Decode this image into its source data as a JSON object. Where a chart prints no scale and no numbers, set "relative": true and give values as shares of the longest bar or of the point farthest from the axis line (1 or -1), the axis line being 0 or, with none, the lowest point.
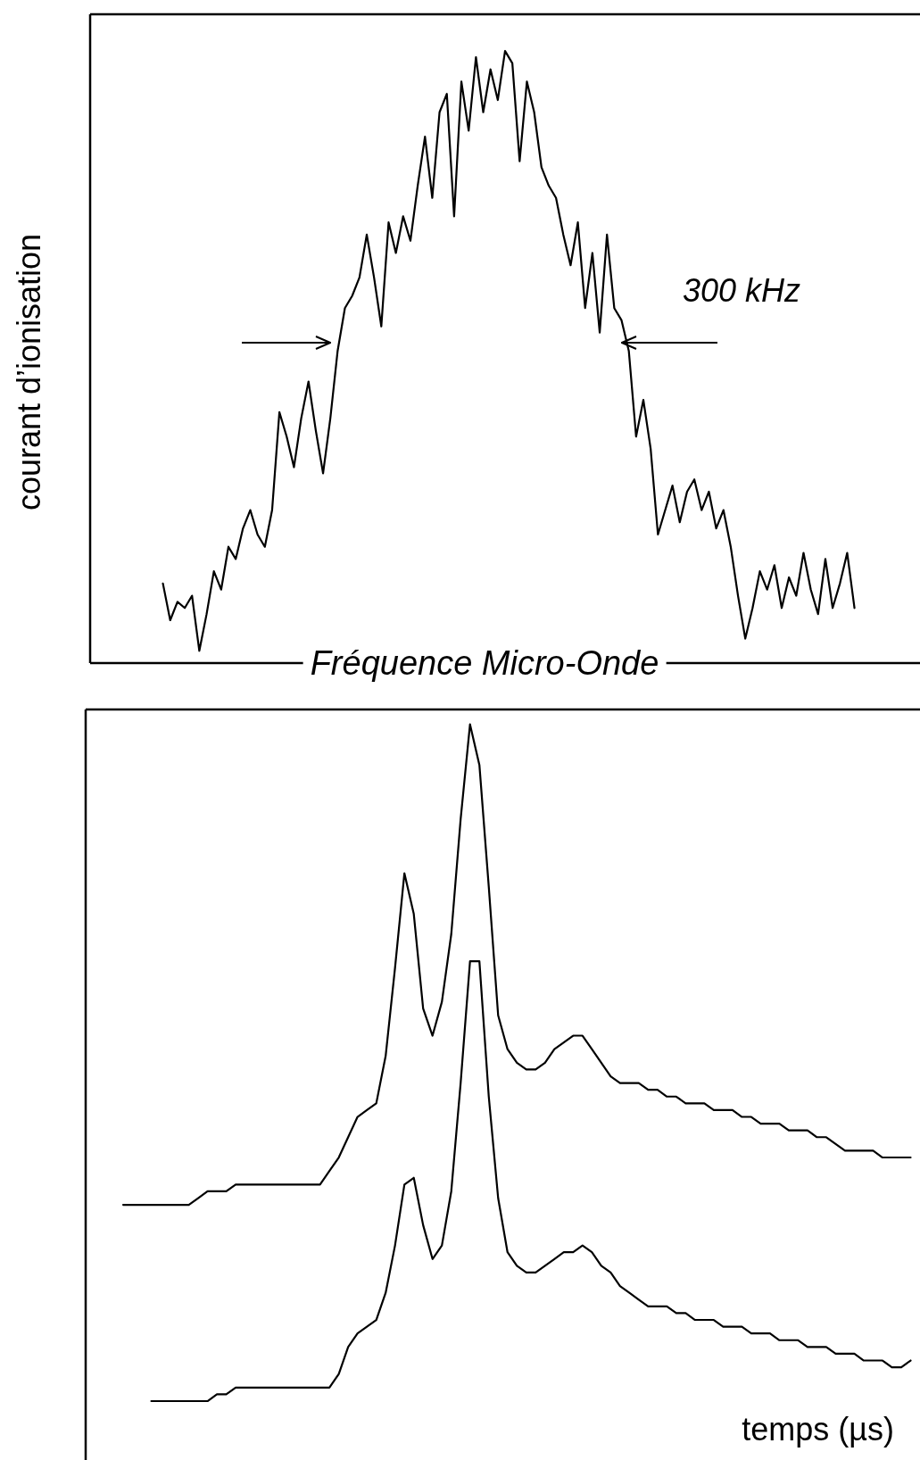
{
  "chart_data": [
    {
      "type": "line",
      "relative": true,
      "ylabel": "courant d’ionisation",
      "xlabel": "Fréquence Micro-Onde",
      "annotations": [
        "300 kHz"
      ],
      "categories": [
        null,
        null,
        null,
        null,
        null,
        null,
        null,
        null,
        null,
        null,
        null,
        null,
        null,
        null,
        null,
        null,
        null,
        null,
        null,
        null,
        null,
        null,
        null,
        null,
        null,
        null,
        null,
        null,
        null,
        null,
        null,
        null,
        null,
        null,
        null,
        null,
        null,
        null,
        null,
        null,
        null,
        null,
        null,
        null,
        null,
        null,
        null,
        null,
        null,
        null,
        null,
        null,
        null,
        null,
        null,
        null,
        null,
        null,
        null,
        null,
        null,
        null,
        null,
        null,
        null,
        null,
        null,
        null,
        null,
        null,
        null,
        null,
        null,
        null,
        null,
        null,
        null,
        null,
        null,
        null,
        null,
        null,
        null,
        null,
        null,
        null,
        null,
        null,
        null,
        null,
        null,
        null,
        null,
        null,
        null,
        null,
        null,
        null,
        null,
        null,
        null,
        null,
        null,
        null,
        null,
        null,
        null,
        null,
        null,
        null,
        null,
        null,
        null,
        null,
        null
      ],
      "series": [
        {
          "color": "#000000",
          "values": [
            null,
            null,
            null,
            null,
            null,
            null,
            null,
            null,
            null,
            null,
            0.13,
            0.07,
            0.1,
            0.09,
            0.11,
            0.02,
            0.08,
            0.15,
            0.12,
            0.19,
            0.17,
            0.22,
            0.25,
            0.21,
            0.19,
            0.25,
            0.41,
            0.37,
            0.32,
            0.4,
            0.46,
            0.38,
            0.31,
            0.4,
            0.51,
            0.58,
            0.6,
            0.63,
            0.7,
            0.63,
            0.55,
            0.72,
            0.67,
            0.73,
            0.69,
            0.78,
            0.86,
            0.76,
            0.9,
            0.93,
            0.73,
            0.95,
            0.87,
            0.99,
            0.9,
            0.97,
            0.92,
            1.0,
            0.98,
            0.82,
            0.95,
            0.9,
            0.81,
            0.78,
            0.76,
            0.7,
            0.65,
            0.72,
            0.58,
            0.67,
            0.54,
            0.7,
            0.58,
            0.56,
            0.51,
            0.37,
            0.43,
            0.35,
            0.21,
            0.25,
            0.29,
            0.23,
            0.28,
            0.3,
            0.25,
            0.28,
            0.22,
            0.25,
            0.19,
            0.11,
            0.04,
            0.09,
            0.15,
            0.12,
            0.16,
            0.09,
            0.14,
            0.11,
            0.18,
            0.12,
            0.08,
            0.17,
            0.09,
            0.13,
            0.18,
            0.09,
            null,
            null,
            null,
            null,
            null,
            null,
            null,
            null,
            null
          ]
        }
      ]
    },
    {
      "type": "line",
      "relative": true,
      "xlabel": "temps  (µs)",
      "categories": [
        null,
        null,
        null,
        null,
        null,
        null,
        null,
        null,
        null,
        null,
        null,
        null,
        null,
        null,
        null,
        null,
        null,
        null,
        null,
        null,
        null,
        null,
        null,
        null,
        null,
        null,
        null,
        null,
        null,
        null,
        null,
        null,
        null,
        null,
        null,
        null,
        null,
        null,
        null,
        null,
        null,
        null,
        null,
        null,
        null,
        null,
        null,
        null,
        null,
        null,
        null,
        null,
        null,
        null,
        null,
        null,
        null,
        null,
        null,
        null,
        null,
        null,
        null,
        null,
        null,
        null,
        null,
        null,
        null,
        null,
        null,
        null,
        null,
        null,
        null,
        null,
        null,
        null,
        null,
        null,
        null,
        null,
        null,
        null,
        null,
        null,
        null,
        null,
        null,
        null
      ],
      "series": [
        {
          "color": "#000000",
          "values": [
            null,
            null,
            null,
            null,
            0.29,
            0.29,
            0.29,
            0.29,
            0.29,
            0.29,
            0.29,
            0.29,
            0.3,
            0.31,
            0.31,
            0.31,
            0.32,
            0.32,
            0.32,
            0.32,
            0.32,
            0.32,
            0.32,
            0.32,
            0.32,
            0.32,
            0.34,
            0.36,
            0.39,
            0.42,
            0.43,
            0.44,
            0.51,
            0.64,
            0.78,
            0.72,
            0.58,
            0.54,
            0.59,
            0.69,
            0.86,
            1.0,
            0.94,
            0.76,
            0.57,
            0.52,
            0.5,
            0.49,
            0.49,
            0.5,
            0.52,
            0.53,
            0.54,
            0.54,
            0.52,
            0.5,
            0.48,
            0.47,
            0.47,
            0.47,
            0.46,
            0.46,
            0.45,
            0.45,
            0.44,
            0.44,
            0.44,
            0.43,
            0.43,
            0.43,
            0.42,
            0.42,
            0.41,
            0.41,
            0.41,
            0.4,
            0.4,
            0.4,
            0.39,
            0.39,
            0.38,
            0.37,
            0.37,
            0.37,
            0.37,
            0.36,
            0.36,
            0.36,
            0.36,
            null
          ]
        },
        {
          "color": "#000000",
          "values": [
            null,
            null,
            null,
            null,
            null,
            null,
            null,
            0,
            0,
            0,
            0,
            0,
            0,
            0,
            0.01,
            0.01,
            0.02,
            0.02,
            0.02,
            0.02,
            0.02,
            0.02,
            0.02,
            0.02,
            0.02,
            0.02,
            0.02,
            0.04,
            0.08,
            0.1,
            0.11,
            0.12,
            0.16,
            0.23,
            0.32,
            0.33,
            0.26,
            0.21,
            0.23,
            0.31,
            0.47,
            0.65,
            0.65,
            0.45,
            0.3,
            0.22,
            0.2,
            0.19,
            0.19,
            0.2,
            0.21,
            0.22,
            0.22,
            0.23,
            0.22,
            0.2,
            0.19,
            0.17,
            0.16,
            0.15,
            0.14,
            0.14,
            0.14,
            0.13,
            0.13,
            0.12,
            0.12,
            0.12,
            0.11,
            0.11,
            0.11,
            0.1,
            0.1,
            0.1,
            0.09,
            0.09,
            0.09,
            0.08,
            0.08,
            0.08,
            0.07,
            0.07,
            0.07,
            0.06,
            0.06,
            0.06,
            0.05,
            0.05,
            0.06,
            null
          ]
        }
      ]
    }
  ]
}
